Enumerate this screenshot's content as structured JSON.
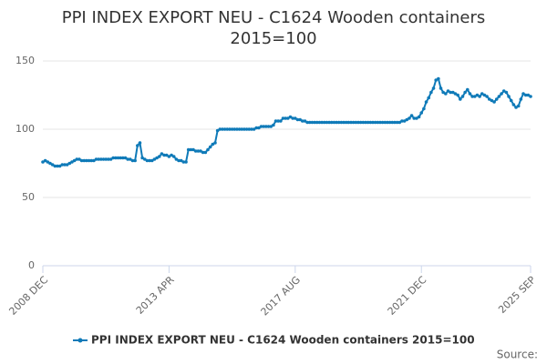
{
  "chart_data": {
    "type": "line",
    "title": "PPI INDEX EXPORT NEU - C1624 Wooden containers 2015=100",
    "source": "Source:",
    "ylim": [
      0,
      150
    ],
    "yticks": [
      0,
      50,
      100,
      150
    ],
    "grid": true,
    "legend": "bottom",
    "categories": [
      "2008 DEC",
      null,
      null,
      null,
      null,
      null,
      null,
      null,
      null,
      null,
      null,
      null,
      null,
      null,
      null,
      null,
      null,
      null,
      null,
      null,
      null,
      null,
      null,
      null,
      null,
      null,
      null,
      null,
      null,
      null,
      null,
      null,
      null,
      null,
      null,
      null,
      null,
      null,
      null,
      null,
      null,
      null,
      null,
      null,
      null,
      null,
      null,
      null,
      null,
      null,
      null,
      null,
      "2013 APR",
      null,
      null,
      null,
      null,
      null,
      null,
      null,
      null,
      null,
      null,
      null,
      null,
      null,
      null,
      null,
      null,
      null,
      null,
      null,
      null,
      null,
      null,
      null,
      null,
      null,
      null,
      null,
      null,
      null,
      null,
      null,
      null,
      null,
      null,
      null,
      null,
      null,
      null,
      null,
      null,
      null,
      null,
      null,
      null,
      null,
      null,
      null,
      null,
      null,
      null,
      null,
      "2017 AUG",
      null,
      null,
      null,
      null,
      null,
      null,
      null,
      null,
      null,
      null,
      null,
      null,
      null,
      null,
      null,
      null,
      null,
      null,
      null,
      null,
      null,
      null,
      null,
      null,
      null,
      null,
      null,
      null,
      null,
      null,
      null,
      null,
      null,
      null,
      null,
      null,
      null,
      null,
      null,
      null,
      null,
      null,
      null,
      null,
      null,
      null,
      null,
      null,
      null,
      null,
      null,
      "2021 DEC",
      null,
      null,
      null,
      null,
      null,
      null,
      null,
      null,
      null,
      null,
      null,
      null,
      null,
      null,
      null,
      null,
      null,
      null,
      null,
      null,
      null,
      null,
      null,
      null,
      null,
      null,
      null,
      null,
      null,
      null,
      null,
      null,
      null,
      null,
      null,
      null,
      null,
      null,
      null,
      null,
      null,
      null,
      null,
      null,
      "2025 SEP"
    ],
    "series": [
      {
        "name": "PPI INDEX EXPORT NEU - C1624 Wooden containers 2015=100",
        "color": "#0f7ab8",
        "values": [
          76,
          77,
          76,
          75,
          74,
          73,
          73,
          73,
          74,
          74,
          74,
          75,
          76,
          77,
          78,
          78,
          77,
          77,
          77,
          77,
          77,
          77,
          78,
          78,
          78,
          78,
          78,
          78,
          78,
          79,
          79,
          79,
          79,
          79,
          79,
          78,
          78,
          77,
          77,
          88,
          90,
          79,
          78,
          77,
          77,
          77,
          78,
          79,
          80,
          82,
          81,
          81,
          80,
          81,
          80,
          78,
          77,
          77,
          76,
          76,
          85,
          85,
          85,
          84,
          84,
          84,
          83,
          83,
          85,
          87,
          89,
          90,
          99,
          100,
          100,
          100,
          100,
          100,
          100,
          100,
          100,
          100,
          100,
          100,
          100,
          100,
          100,
          100,
          101,
          101,
          102,
          102,
          102,
          102,
          102,
          103,
          106,
          106,
          106,
          108,
          108,
          108,
          109,
          108,
          108,
          107,
          107,
          106,
          106,
          105,
          105,
          105,
          105,
          105,
          105,
          105,
          105,
          105,
          105,
          105,
          105,
          105,
          105,
          105,
          105,
          105,
          105,
          105,
          105,
          105,
          105,
          105,
          105,
          105,
          105,
          105,
          105,
          105,
          105,
          105,
          105,
          105,
          105,
          105,
          105,
          105,
          105,
          105,
          106,
          106,
          107,
          108,
          110,
          108,
          108,
          109,
          112,
          115,
          120,
          123,
          127,
          130,
          136,
          137,
          130,
          127,
          126,
          128,
          127,
          127,
          126,
          125,
          122,
          124,
          127,
          129,
          126,
          124,
          124,
          125,
          124,
          126,
          125,
          124,
          122,
          121,
          120,
          122,
          124,
          126,
          128,
          127,
          124,
          121,
          118,
          116,
          117,
          122,
          126,
          125,
          125,
          124
        ]
      }
    ]
  }
}
